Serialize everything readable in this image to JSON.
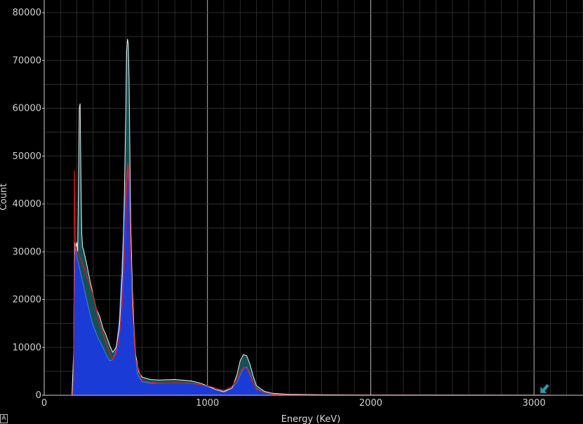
{
  "chart_data": {
    "type": "area",
    "xlabel": "Energy (KeV)",
    "ylabel": "Count",
    "xlim": [
      0,
      3300
    ],
    "ylim": [
      0,
      80000
    ],
    "x_ticks": [
      "0",
      "1000",
      "2000",
      "3000"
    ],
    "y_ticks": [
      "0",
      "10000",
      "20000",
      "30000",
      "40000",
      "50000",
      "60000",
      "70000",
      "80000"
    ],
    "grid": true,
    "series": [
      {
        "style": "fill",
        "fill_color": "#1a3bd6",
        "outline_color": "#3f7ff0",
        "x": [
          170,
          180,
          185,
          190,
          200,
          210,
          220,
          240,
          260,
          280,
          300,
          330,
          360,
          380,
          400,
          420,
          440,
          460,
          480,
          500,
          510,
          520,
          530,
          550,
          570,
          600,
          650,
          700,
          800,
          900,
          950,
          1000,
          1050,
          1100,
          1150,
          1180,
          1200,
          1220,
          1240,
          1260,
          1280,
          1300,
          1350,
          1400,
          1500,
          1700,
          2000,
          2500,
          3100
        ],
        "y": [
          0,
          6000,
          29000,
          31000,
          29000,
          27500,
          26000,
          23000,
          20000,
          17000,
          14500,
          12000,
          10000,
          8500,
          7200,
          7400,
          9500,
          16000,
          30000,
          44000,
          47500,
          44000,
          30000,
          12000,
          4500,
          2800,
          2500,
          2500,
          2600,
          2500,
          2300,
          1800,
          1200,
          900,
          1500,
          2700,
          4200,
          5700,
          5900,
          4500,
          2600,
          1400,
          600,
          300,
          150,
          80,
          40,
          20,
          0
        ]
      },
      {
        "style": "fill",
        "fill_color": "#19595c",
        "outline_color": "#e8f4f4",
        "x": [
          170,
          180,
          185,
          190,
          195,
          200,
          205,
          210,
          215,
          220,
          225,
          230,
          235,
          240,
          250,
          260,
          280,
          300,
          320,
          340,
          360,
          380,
          400,
          420,
          440,
          460,
          480,
          490,
          500,
          505,
          510,
          515,
          520,
          525,
          530,
          540,
          550,
          560,
          580,
          600,
          650,
          700,
          800,
          900,
          950,
          1000,
          1050,
          1100,
          1150,
          1180,
          1200,
          1220,
          1240,
          1260,
          1280,
          1300,
          1350,
          1400,
          1500,
          1700,
          2000,
          2500,
          3000,
          3050,
          3100
        ],
        "y": [
          0,
          9000,
          31000,
          32000,
          31000,
          32000,
          30000,
          45000,
          60000,
          61000,
          45000,
          34000,
          31000,
          30500,
          29000,
          27500,
          24000,
          21000,
          18000,
          16500,
          14000,
          12500,
          10500,
          9000,
          10000,
          14000,
          26000,
          40000,
          60000,
          72000,
          74500,
          73500,
          66000,
          50000,
          36000,
          22000,
          14000,
          8500,
          4800,
          3800,
          3300,
          3200,
          3300,
          3000,
          2600,
          2000,
          1200,
          700,
          1500,
          4200,
          7200,
          8500,
          8300,
          6500,
          4000,
          2000,
          800,
          400,
          200,
          100,
          60,
          30,
          20,
          15,
          0
        ]
      },
      {
        "style": "line",
        "color": "#e01818",
        "x": [
          170,
          175,
          180,
          182,
          185,
          188,
          192,
          200,
          210,
          230,
          260,
          300,
          340,
          380,
          400,
          420,
          440,
          460,
          480,
          500,
          505,
          510,
          515,
          520,
          530,
          540,
          560,
          600,
          700,
          800,
          900,
          1000,
          1100,
          1150,
          1180,
          1200,
          1220,
          1240,
          1260,
          1280,
          1300,
          1350,
          1400,
          1500,
          1700,
          2000,
          2500,
          3100
        ],
        "y": [
          0,
          200,
          3000,
          20000,
          47000,
          38000,
          31000,
          30200,
          29500,
          28000,
          25000,
          21000,
          15000,
          11000,
          8800,
          7500,
          8500,
          12000,
          20000,
          35000,
          44000,
          48500,
          48000,
          44000,
          30000,
          18000,
          7500,
          3000,
          2500,
          2600,
          2500,
          2000,
          1000,
          1800,
          3500,
          5000,
          5800,
          5700,
          4200,
          2500,
          1200,
          500,
          200,
          80,
          30,
          15,
          5,
          0
        ]
      }
    ],
    "annotations": [
      {
        "type": "arrow-marker",
        "x": 3040,
        "y": 0,
        "color": "#2f9bb0"
      }
    ]
  }
}
